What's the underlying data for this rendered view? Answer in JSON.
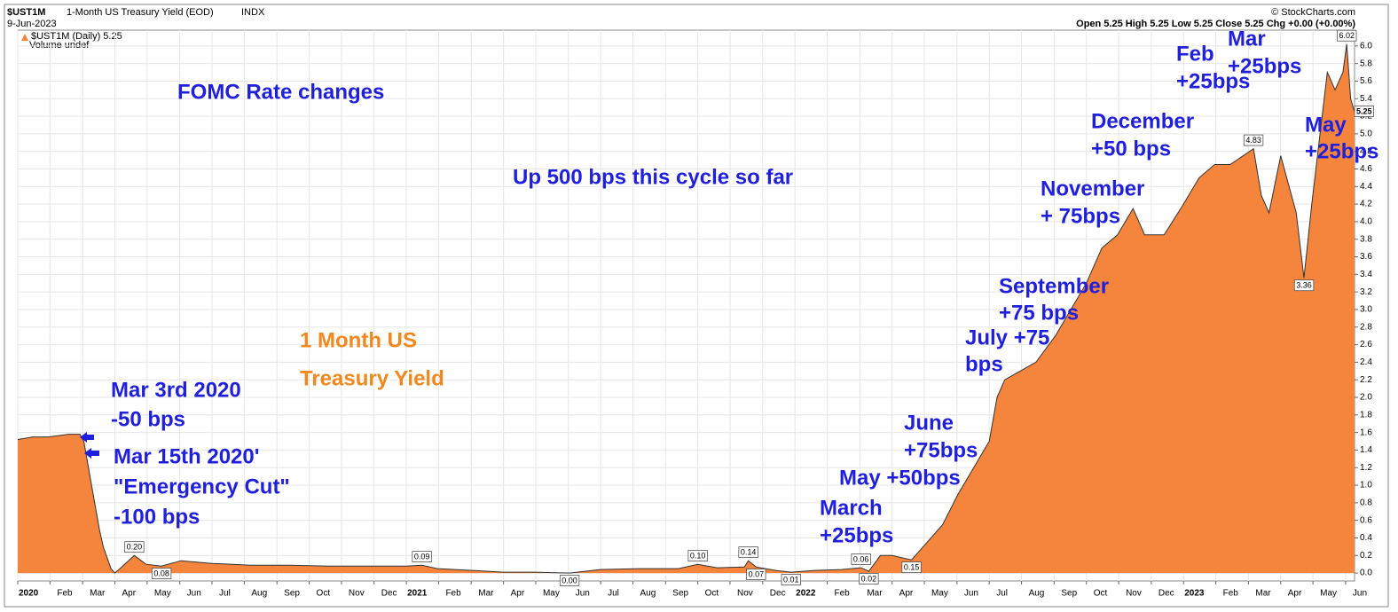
{
  "header": {
    "symbol": "$UST1M",
    "name": "1-Month US Treasury Yield (EOD)",
    "exchange": "INDX",
    "date": "9-Jun-2023",
    "source": "© StockCharts.com",
    "ohlc": "Open 5.25 High 5.25 Low 5.25 Close 5.25 Chg +0.00 (+0.00%)",
    "volume": "Volume undef"
  },
  "chart_data": {
    "type": "area",
    "series": [
      {
        "name": "$UST1M (Daily) 5.25",
        "color": "#f5843c",
        "line_color": "#333333",
        "x": [
          2020.0,
          2020.04,
          2020.08,
          2020.13,
          2020.16,
          2020.17,
          2020.19,
          2020.21,
          2020.22,
          2020.24,
          2020.25,
          2020.27,
          2020.3,
          2020.33,
          2020.37,
          2020.42,
          2020.5,
          2020.6,
          2020.7,
          2020.8,
          2020.92,
          2021.0,
          2021.04,
          2021.08,
          2021.17,
          2021.25,
          2021.33,
          2021.42,
          2021.5,
          2021.6,
          2021.7,
          2021.75,
          2021.8,
          2021.87,
          2021.88,
          2021.9,
          2021.95,
          2021.99,
          2022.05,
          2022.12,
          2022.17,
          2022.19,
          2022.22,
          2022.25,
          2022.3,
          2022.33,
          2022.38,
          2022.42,
          2022.46,
          2022.5,
          2022.52,
          2022.54,
          2022.58,
          2022.62,
          2022.67,
          2022.71,
          2022.75,
          2022.79,
          2022.83,
          2022.87,
          2022.9,
          2022.95,
          2023.0,
          2023.04,
          2023.08,
          2023.12,
          2023.17,
          2023.18,
          2023.2,
          2023.22,
          2023.25,
          2023.29,
          2023.31,
          2023.33,
          2023.37,
          2023.39,
          2023.41,
          2023.42,
          2023.43,
          2023.44
        ],
        "values": [
          1.52,
          1.55,
          1.55,
          1.58,
          1.58,
          1.5,
          1.0,
          0.5,
          0.3,
          0.05,
          0.0,
          0.08,
          0.2,
          0.1,
          0.08,
          0.14,
          0.11,
          0.09,
          0.09,
          0.08,
          0.08,
          0.08,
          0.09,
          0.05,
          0.03,
          0.01,
          0.01,
          0.0,
          0.04,
          0.05,
          0.05,
          0.1,
          0.06,
          0.07,
          0.14,
          0.07,
          0.03,
          0.01,
          0.03,
          0.04,
          0.06,
          0.02,
          0.2,
          0.2,
          0.15,
          0.3,
          0.55,
          0.9,
          1.2,
          1.5,
          2.0,
          2.2,
          2.3,
          2.4,
          2.7,
          3.0,
          3.3,
          3.7,
          3.85,
          4.15,
          3.85,
          3.85,
          4.2,
          4.5,
          4.65,
          4.65,
          4.8,
          4.83,
          4.3,
          4.1,
          4.75,
          4.1,
          3.36,
          4.2,
          5.7,
          5.5,
          5.7,
          6.02,
          5.4,
          5.25
        ],
        "value_labels": [
          null,
          null,
          null,
          null,
          null,
          null,
          null,
          null,
          null,
          null,
          null,
          null,
          "0.20",
          null,
          "0.08",
          null,
          null,
          null,
          null,
          null,
          null,
          null,
          "0.09",
          null,
          null,
          null,
          null,
          "0.00",
          null,
          null,
          null,
          "0.10",
          null,
          null,
          "0.14",
          "0.07",
          null,
          "0.01",
          null,
          null,
          "0.06",
          "0.02",
          null,
          null,
          "0.15",
          null,
          null,
          null,
          null,
          null,
          null,
          null,
          null,
          null,
          null,
          null,
          null,
          null,
          null,
          null,
          null,
          null,
          null,
          null,
          null,
          null,
          null,
          "4.83",
          null,
          null,
          null,
          null,
          "3.36",
          null,
          null,
          null,
          null,
          "6.02",
          null,
          "5.25"
        ]
      }
    ],
    "xlim": [
      2020.0,
      2023.44
    ],
    "ylim": [
      -0.09,
      6.18
    ],
    "grid": true,
    "y_axis_side": "right",
    "xticks": [
      2020,
      {
        "value": 2020.083,
        "label": "Feb"
      },
      {
        "value": 2020.167,
        "label": "Mar"
      },
      {
        "value": 2020.25,
        "label": "Apr"
      },
      {
        "value": 2020.333,
        "label": "May"
      },
      {
        "value": 2020.417,
        "label": "Jun"
      },
      {
        "value": 2020.5,
        "label": "Jul"
      },
      {
        "value": 2020.583,
        "label": "Aug"
      },
      {
        "value": 2020.667,
        "label": "Sep"
      },
      {
        "value": 2020.75,
        "label": "Oct"
      },
      {
        "value": 2020.833,
        "label": "Nov"
      },
      {
        "value": 2020.917,
        "label": "Dec"
      },
      2021,
      {
        "value": 2021.083,
        "label": "Feb"
      },
      {
        "value": 2021.167,
        "label": "Mar"
      },
      {
        "value": 2021.25,
        "label": "Apr"
      },
      {
        "value": 2021.333,
        "label": "May"
      },
      {
        "value": 2021.417,
        "label": "Jun"
      },
      {
        "value": 2021.5,
        "label": "Jul"
      },
      {
        "value": 2021.583,
        "label": "Aug"
      },
      {
        "value": 2021.667,
        "label": "Sep"
      },
      {
        "value": 2021.75,
        "label": "Oct"
      },
      {
        "value": 2021.833,
        "label": "Nov"
      },
      {
        "value": 2021.917,
        "label": "Dec"
      },
      2022,
      {
        "value": 2022.083,
        "label": "Feb"
      },
      {
        "value": 2022.167,
        "label": "Mar"
      },
      {
        "value": 2022.25,
        "label": "Apr"
      },
      {
        "value": 2022.333,
        "label": "May"
      },
      {
        "value": 2022.417,
        "label": "Jun"
      },
      {
        "value": 2022.5,
        "label": "Jul"
      },
      {
        "value": 2022.583,
        "label": "Aug"
      },
      {
        "value": 2022.667,
        "label": "Sep"
      },
      {
        "value": 2022.75,
        "label": "Oct"
      },
      {
        "value": 2022.833,
        "label": "Nov"
      },
      {
        "value": 2022.917,
        "label": "Dec"
      },
      2023,
      {
        "value": 2023.083,
        "label": "Feb"
      },
      {
        "value": 2023.167,
        "label": "Mar"
      },
      {
        "value": 2023.25,
        "label": "Apr"
      },
      {
        "value": 2023.333,
        "label": "May"
      },
      {
        "value": 2023.417,
        "label": "Jun"
      }
    ],
    "yticks": [
      {
        "value": 0,
        "label": "0.0"
      },
      {
        "value": 0.2,
        "label": "0.2"
      },
      {
        "value": 0.4,
        "label": "0.4"
      },
      {
        "value": 0.6,
        "label": "0.6"
      },
      {
        "value": 0.8,
        "label": "0.8"
      },
      {
        "value": 1,
        "label": "1.0"
      },
      {
        "value": 1.2,
        "label": "1.2"
      },
      {
        "value": 1.4,
        "label": "1.4"
      },
      {
        "value": 1.6,
        "label": "1.6"
      },
      {
        "value": 1.8,
        "label": "1.8"
      },
      {
        "value": 2,
        "label": "2.0"
      },
      {
        "value": 2.2,
        "label": "2.2"
      },
      {
        "value": 2.4,
        "label": "2.4"
      },
      {
        "value": 2.6,
        "label": "2.6"
      },
      {
        "value": 2.8,
        "label": "2.8"
      },
      {
        "value": 3,
        "label": "3.0"
      },
      {
        "value": 3.2,
        "label": "3.2"
      },
      {
        "value": 3.4,
        "label": "3.4"
      },
      {
        "value": 3.6,
        "label": "3.6"
      },
      {
        "value": 3.8,
        "label": "3.8"
      },
      {
        "value": 4,
        "label": "4.0"
      },
      {
        "value": 4.2,
        "label": "4.2"
      },
      {
        "value": 4.4,
        "label": "4.4"
      },
      {
        "value": 4.6,
        "label": "4.6"
      },
      {
        "value": 4.8,
        "label": "4.8"
      },
      {
        "value": 5,
        "label": "5.0"
      },
      {
        "value": 5.2,
        "label": "5.2"
      },
      {
        "value": 5.4,
        "label": "5.4"
      },
      {
        "value": 5.6,
        "label": "5.6"
      },
      {
        "value": 5.8,
        "label": "5.8"
      },
      {
        "value": 6,
        "label": "6.0"
      }
    ],
    "annotations": [
      {
        "lines": [
          "FOMC Rate changes"
        ],
        "color": "#1f1fdc"
      },
      {
        "lines": [
          "Up 500 bps this cycle so far"
        ],
        "color": "#1f1fdc"
      },
      {
        "lines": [
          "1 Month US",
          "Treasury Yield"
        ],
        "color": "#f0881e"
      },
      {
        "lines": [
          "Mar 3rd 2020",
          "-50 bps"
        ],
        "color": "#1f1fdc"
      },
      {
        "lines": [
          "Mar 15th 2020'",
          "\"Emergency Cut\"",
          "-100 bps"
        ],
        "color": "#1f1fdc"
      },
      {
        "lines": [
          "March",
          "+25bps"
        ],
        "color": "#1f1fdc"
      },
      {
        "lines": [
          "May +50bps"
        ],
        "color": "#1f1fdc"
      },
      {
        "lines": [
          "June",
          "+75bps"
        ],
        "color": "#1f1fdc"
      },
      {
        "lines": [
          "July +75",
          "bps"
        ],
        "color": "#1f1fdc"
      },
      {
        "lines": [
          "September",
          "+75 bps"
        ],
        "color": "#1f1fdc"
      },
      {
        "lines": [
          "November",
          "+ 75bps"
        ],
        "color": "#1f1fdc"
      },
      {
        "lines": [
          "December",
          "+50 bps"
        ],
        "color": "#1f1fdc"
      },
      {
        "lines": [
          "Feb",
          "+25bps"
        ],
        "color": "#1f1fdc"
      },
      {
        "lines": [
          "Mar",
          "+25bps"
        ],
        "color": "#1f1fdc"
      },
      {
        "lines": [
          "May",
          "+25bps"
        ],
        "color": "#1f1fdc"
      }
    ]
  }
}
